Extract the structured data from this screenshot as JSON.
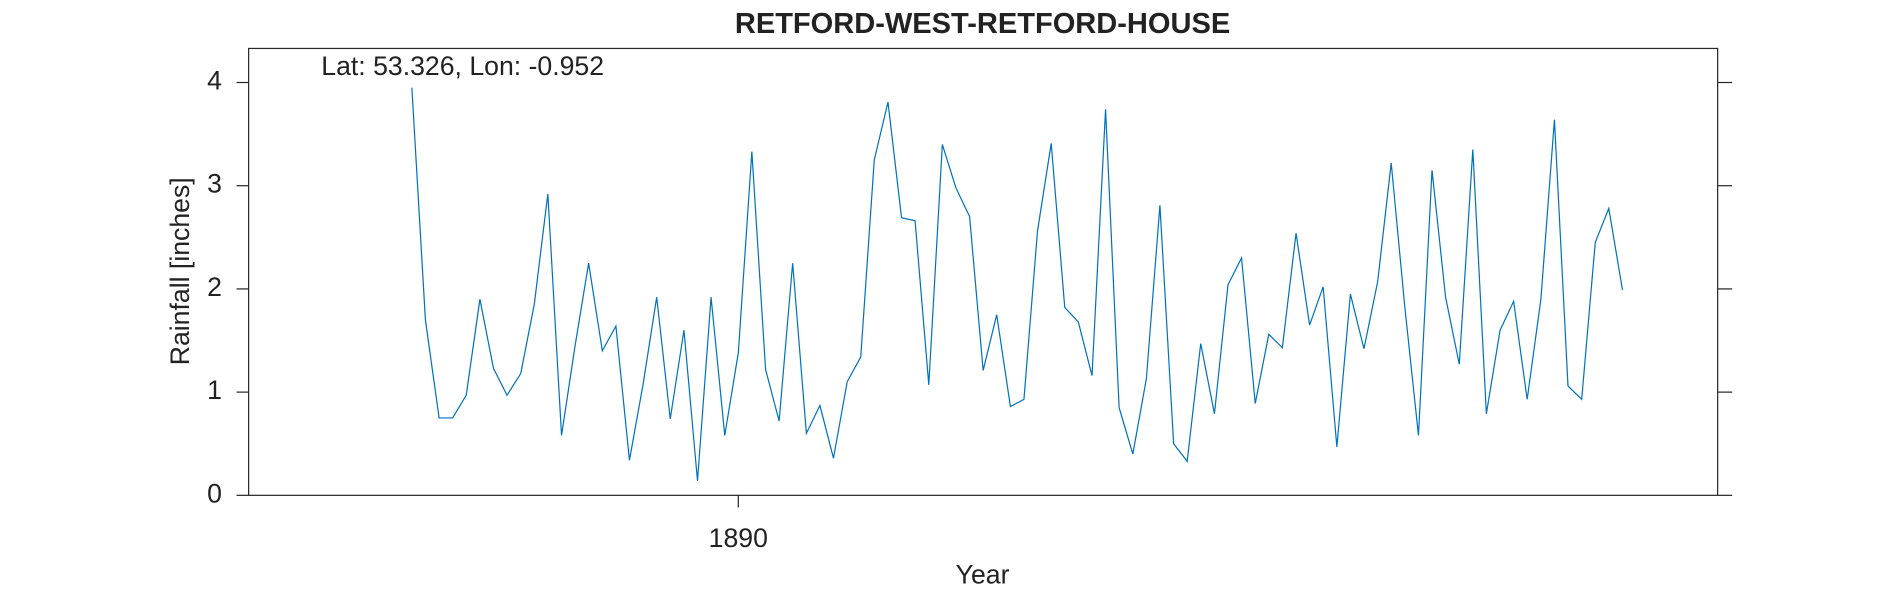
{
  "chart_data": {
    "type": "line",
    "title": "RETFORD-WEST-RETFORD-HOUSE",
    "annotation": "Lat: 53.326, Lon: -0.952",
    "xlabel": "Year",
    "ylabel": "Rainfall [inches]",
    "xlim": [
      1887,
      1896
    ],
    "xticks": [
      1890
    ],
    "ylim": [
      0,
      4.33
    ],
    "yticks": [
      0,
      1,
      2,
      3,
      4
    ],
    "x": [
      1888,
      1888.083,
      1888.167,
      1888.25,
      1888.333,
      1888.417,
      1888.5,
      1888.583,
      1888.667,
      1888.75,
      1888.833,
      1888.917,
      1889,
      1889.083,
      1889.167,
      1889.25,
      1889.333,
      1889.417,
      1889.5,
      1889.583,
      1889.667,
      1889.75,
      1889.833,
      1889.917,
      1890,
      1890.083,
      1890.167,
      1890.25,
      1890.333,
      1890.417,
      1890.5,
      1890.583,
      1890.667,
      1890.75,
      1890.833,
      1890.917,
      1891,
      1891.083,
      1891.167,
      1891.25,
      1891.333,
      1891.417,
      1891.5,
      1891.583,
      1891.667,
      1891.75,
      1891.833,
      1891.917,
      1892,
      1892.083,
      1892.167,
      1892.25,
      1892.333,
      1892.417,
      1892.5,
      1892.583,
      1892.667,
      1892.75,
      1892.833,
      1892.917,
      1893,
      1893.083,
      1893.167,
      1893.25,
      1893.333,
      1893.417,
      1893.5,
      1893.583,
      1893.667,
      1893.75,
      1893.833,
      1893.917,
      1894,
      1894.083,
      1894.167,
      1894.25,
      1894.333,
      1894.417,
      1894.5,
      1894.583,
      1894.667,
      1894.75,
      1894.833,
      1894.917,
      1895,
      1895.083,
      1895.167,
      1895.25,
      1895.333,
      1895.417
    ],
    "series": [
      {
        "name": "Rainfall",
        "color": "#0072bd",
        "values": [
          3.95,
          1.7,
          0.75,
          0.75,
          0.97,
          1.9,
          1.23,
          0.97,
          1.18,
          1.85,
          2.92,
          0.58,
          1.45,
          2.25,
          1.4,
          1.64,
          0.34,
          1.08,
          1.92,
          0.74,
          1.6,
          0.14,
          1.92,
          0.58,
          1.38,
          3.33,
          1.22,
          0.72,
          2.25,
          0.6,
          0.87,
          0.36,
          1.1,
          1.34,
          3.25,
          3.81,
          2.69,
          2.66,
          1.07,
          3.4,
          2.98,
          2.7,
          1.21,
          1.75,
          0.86,
          0.93,
          2.56,
          3.41,
          1.82,
          1.68,
          1.16,
          3.74,
          0.85,
          0.4,
          1.13,
          2.81,
          0.5,
          0.33,
          1.47,
          0.79,
          2.04,
          2.3,
          0.89,
          1.56,
          1.43,
          2.54,
          1.65,
          2.02,
          0.47,
          1.95,
          1.42,
          2.07,
          3.22,
          1.83,
          0.58,
          3.15,
          1.92,
          1.27,
          3.35,
          0.79,
          1.6,
          1.88,
          0.93,
          1.9,
          3.64,
          1.06,
          0.93,
          2.45,
          2.78,
          1.99
        ]
      }
    ]
  }
}
